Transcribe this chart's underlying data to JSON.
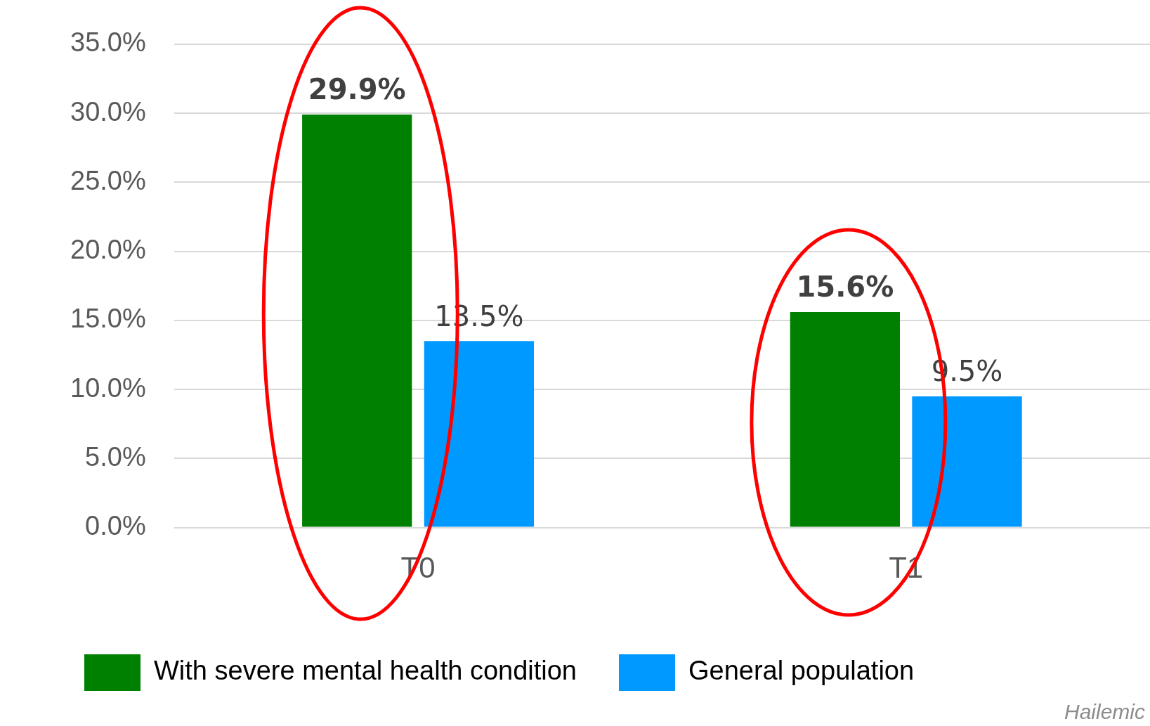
{
  "chart_data": {
    "type": "bar",
    "categories": [
      "T0",
      "T1"
    ],
    "series": [
      {
        "name": "With severe mental health condition",
        "color": "#008000",
        "values": [
          29.9,
          15.6
        ],
        "value_labels": [
          "29.9%",
          "15.6%"
        ]
      },
      {
        "name": "General population",
        "color": "#0099ff",
        "values": [
          13.5,
          9.5
        ],
        "value_labels": [
          "13.5%",
          "9.5%"
        ]
      }
    ],
    "ylim": [
      0,
      35
    ],
    "yticks": [
      {
        "value": 0,
        "label": "0.0%"
      },
      {
        "value": 5,
        "label": "5.0%"
      },
      {
        "value": 10,
        "label": "10.0%"
      },
      {
        "value": 15,
        "label": "15.0%"
      },
      {
        "value": 20,
        "label": "20.0%"
      },
      {
        "value": 25,
        "label": "25.0%"
      },
      {
        "value": 30,
        "label": "30.0%"
      },
      {
        "value": 35,
        "label": "35.0%"
      }
    ],
    "grid": "y",
    "legend": "bottom",
    "annotations": [
      "Hailemic"
    ]
  }
}
